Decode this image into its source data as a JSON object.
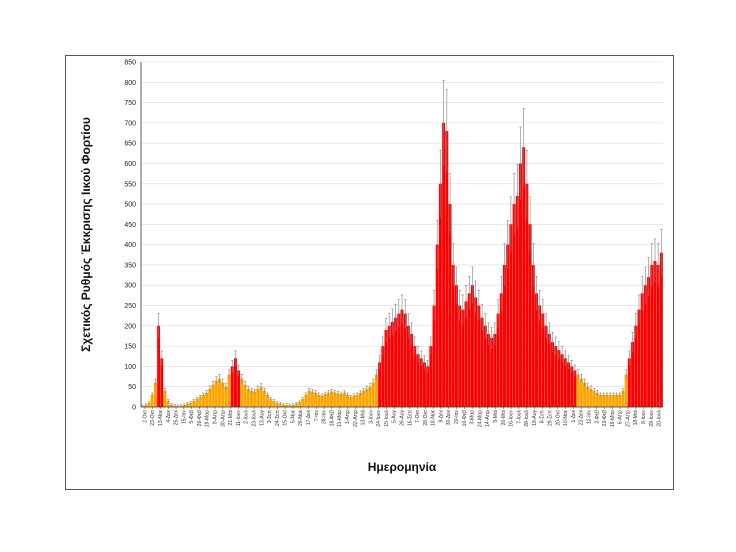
{
  "chart_data": {
    "type": "bar",
    "ylabel": "Σχετικός Ρυθμός Έκκρισης Ιικού Φορτίου",
    "xlabel": "Ημερομηνία",
    "ylim": [
      0,
      850
    ],
    "yticks": [
      0,
      50,
      100,
      150,
      200,
      250,
      300,
      350,
      400,
      450,
      500,
      550,
      600,
      650,
      700,
      750,
      800,
      850
    ],
    "grid": true,
    "colors": {
      "high": "#ff0000",
      "low": "#ffa500",
      "error_bar": "#808080",
      "grid": "#d9d9d9"
    },
    "threshold": 90,
    "x_tick_labels": [
      "2-Οκτ",
      "23-Οκτ",
      "13-Νοε",
      "4-Δεκ",
      "25-Δεκ",
      "15-Ιαν",
      "5-Φεβ",
      "26-Φεβ",
      "19-Μαρ",
      "9-Απρ",
      "30-Απρ",
      "21-Μαϊ",
      "11-Ιουν",
      "2-Ιουλ",
      "23-Ιουλ",
      "13-Αυγ",
      "3-Σεπ",
      "24-Σεπ",
      "15-Οκτ",
      "5-Νοε",
      "26-Νοε",
      "17-Δεκ",
      "7-Ιαν",
      "28-Ιαν",
      "18-Φεβ",
      "11-Μαρ",
      "1-Απρ",
      "22-Απρ",
      "13-Μαϊ",
      "3-Ιουν",
      "24-Ιουν",
      "15-Ιουλ",
      "5-Αυγ",
      "26-Αυγ",
      "16-Σεπ",
      "7-Οκτ",
      "28-Οκτ",
      "18-Νοε",
      "9-Δεκ",
      "30-Δεκ",
      "20-Ιαν",
      "10-Φεβ",
      "3-Μαρ",
      "24-Μαρ",
      "14-Απρ",
      "5-Μαϊ",
      "26-Μαϊ",
      "16-Ιουν",
      "7-Ιουλ",
      "28-Ιουλ",
      "18-Αυγ",
      "8-Σεπ",
      "29-Σεπ",
      "20-Οκτ",
      "10-Νοε",
      "1-Δεκ",
      "22-Δεκ",
      "12-Ιαν",
      "2-Φεβ",
      "23-Φεβ",
      "16-Μαρ",
      "6-Απρ",
      "27-Απρ",
      "18-Μαϊ",
      "8-Ιουν",
      "29-Ιουν",
      "20-Ιουλ"
    ],
    "values": [
      2,
      5,
      10,
      30,
      60,
      200,
      120,
      40,
      15,
      5,
      3,
      2,
      3,
      5,
      8,
      10,
      15,
      20,
      25,
      30,
      35,
      45,
      55,
      65,
      70,
      60,
      50,
      80,
      100,
      120,
      90,
      70,
      55,
      45,
      40,
      38,
      45,
      50,
      40,
      30,
      20,
      15,
      10,
      8,
      5,
      5,
      4,
      5,
      8,
      12,
      20,
      30,
      40,
      38,
      35,
      30,
      28,
      32,
      35,
      38,
      36,
      34,
      32,
      35,
      30,
      25,
      28,
      30,
      35,
      40,
      45,
      50,
      60,
      80,
      110,
      150,
      190,
      200,
      210,
      220,
      230,
      240,
      230,
      200,
      180,
      150,
      130,
      120,
      110,
      100,
      150,
      250,
      400,
      550,
      700,
      680,
      500,
      350,
      300,
      250,
      240,
      260,
      280,
      300,
      270,
      250,
      220,
      200,
      180,
      170,
      180,
      230,
      280,
      350,
      400,
      450,
      500,
      520,
      600,
      640,
      550,
      450,
      350,
      280,
      250,
      230,
      200,
      180,
      160,
      150,
      140,
      130,
      120,
      110,
      100,
      90,
      80,
      70,
      60,
      50,
      45,
      40,
      35,
      30,
      30,
      30,
      30,
      30,
      30,
      30,
      40,
      80,
      120,
      160,
      200,
      240,
      280,
      300,
      320,
      350,
      360,
      350,
      380
    ]
  }
}
